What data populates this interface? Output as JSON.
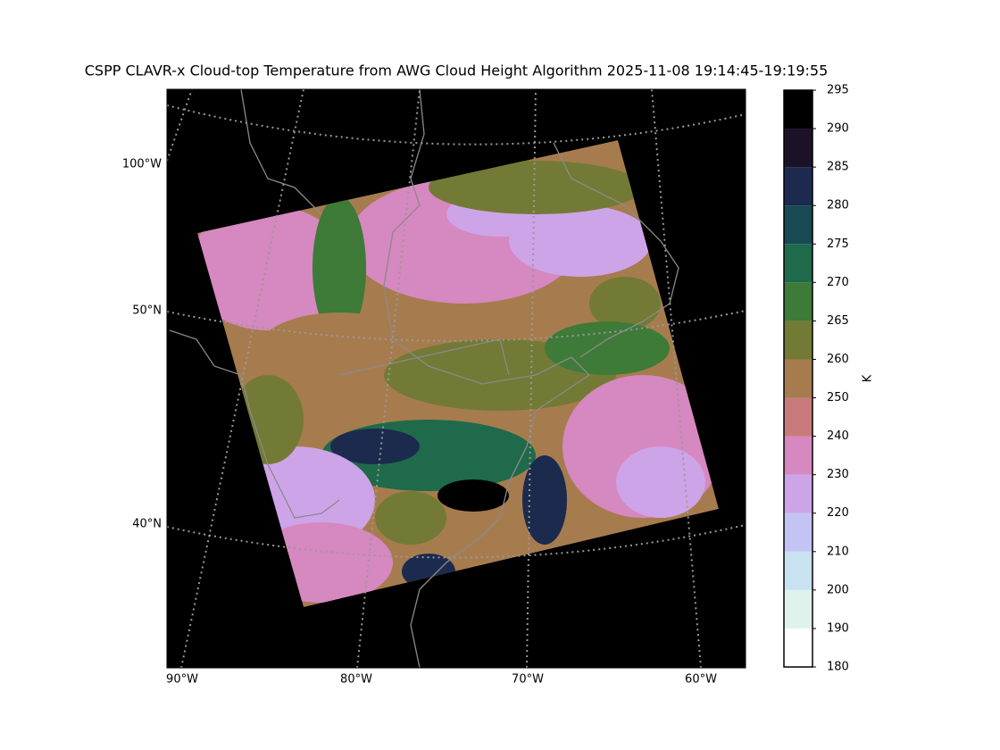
{
  "title": "CSPP CLAVR-x Cloud-top Temperature from AWG Cloud Height Algorithm 2025-11-08 19:14:45-19:19:55",
  "map": {
    "left_labels": [
      "100°W",
      "50°N",
      "40°N"
    ],
    "bottom_labels": [
      "90°W",
      "80°W",
      "70°W",
      "60°W"
    ]
  },
  "colorbar": {
    "label": "K",
    "ticks": [
      180,
      190,
      200,
      210,
      220,
      230,
      240,
      250,
      260,
      265,
      270,
      275,
      280,
      285,
      290,
      295
    ],
    "colors": [
      "#ffffff",
      "#dff3ec",
      "#c8e2f0",
      "#c4c4f4",
      "#cda4e8",
      "#d688c0",
      "#c97a7c",
      "#a67c4e",
      "#737a35",
      "#3e7a38",
      "#1e6a4a",
      "#174a52",
      "#1c2a4e",
      "#1c1228",
      "#000000"
    ]
  }
}
